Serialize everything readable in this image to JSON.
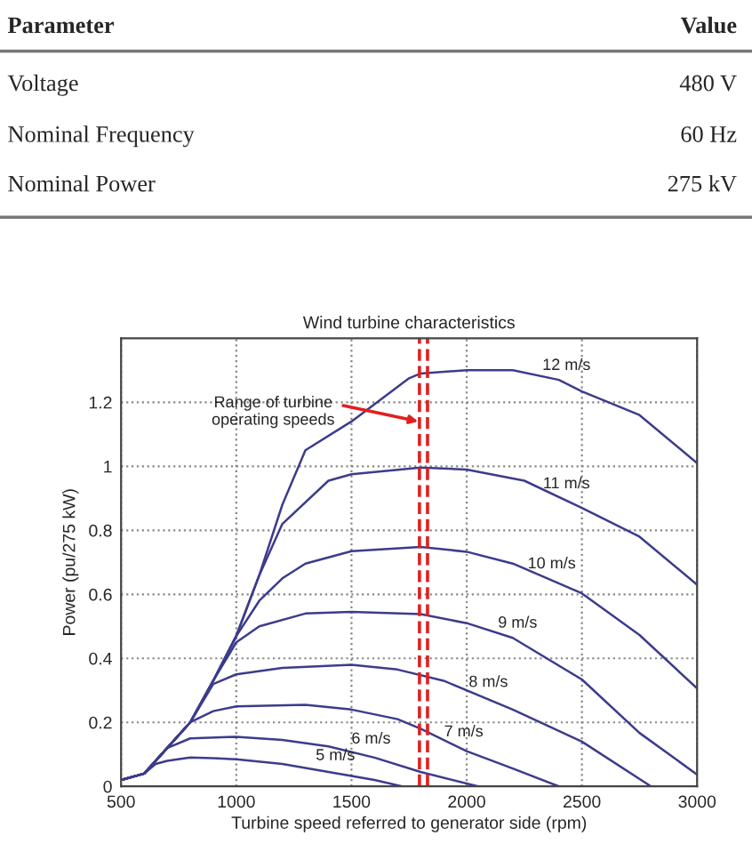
{
  "chart_data": {
    "type": "line",
    "title": "Wind turbine characteristics",
    "xlabel": "Turbine speed referred to generator side (rpm)",
    "ylabel": "Power (pu/275 kW)",
    "xlim": [
      500,
      3000
    ],
    "xticks": [
      500,
      1000,
      1500,
      2000,
      2500,
      3000
    ],
    "ylim": [
      0,
      1.4
    ],
    "yticks": [
      0,
      0.2,
      0.4,
      0.6,
      0.8,
      1,
      1.2
    ],
    "grid": true,
    "line_style": "solid",
    "marker": "none",
    "series": [
      {
        "color": "#3c3c8c",
        "x": [
          500,
          600,
          650,
          700,
          800,
          900,
          1000,
          1200,
          1400,
          1600,
          1720
        ],
        "values": [
          0.02,
          0.04,
          0.07,
          0.08,
          0.09,
          0.088,
          0.085,
          0.07,
          0.045,
          0.02,
          0
        ]
      },
      {
        "color": "#3c3c8c",
        "x": [
          500,
          600,
          700,
          800,
          1000,
          1200,
          1400,
          1600,
          1800,
          2050
        ],
        "values": [
          0.02,
          0.04,
          0.12,
          0.15,
          0.155,
          0.145,
          0.125,
          0.09,
          0.045,
          0
        ]
      },
      {
        "color": "#3c3c8c",
        "x": [
          500,
          600,
          700,
          800,
          900,
          1000,
          1300,
          1500,
          1700,
          1800,
          2000,
          2200,
          2400
        ],
        "values": [
          0.02,
          0.04,
          0.12,
          0.2,
          0.235,
          0.25,
          0.255,
          0.24,
          0.21,
          0.18,
          0.11,
          0.056,
          0
        ]
      },
      {
        "color": "#3c3c8c",
        "x": [
          500,
          600,
          700,
          800,
          900,
          1000,
          1200,
          1500,
          1700,
          1900,
          2200,
          2500,
          2800
        ],
        "values": [
          0.02,
          0.04,
          0.12,
          0.2,
          0.32,
          0.35,
          0.37,
          0.38,
          0.365,
          0.33,
          0.24,
          0.14,
          0
        ]
      },
      {
        "color": "#3c3c8c",
        "x": [
          500,
          600,
          700,
          800,
          900,
          1000,
          1100,
          1300,
          1500,
          1800,
          2000,
          2200,
          2500,
          2750,
          3000
        ],
        "values": [
          0.02,
          0.04,
          0.12,
          0.2,
          0.33,
          0.45,
          0.5,
          0.54,
          0.545,
          0.538,
          0.51,
          0.464,
          0.334,
          0.167,
          0.037
        ]
      },
      {
        "color": "#3c3c8c",
        "x": [
          500,
          600,
          700,
          800,
          900,
          1000,
          1100,
          1200,
          1300,
          1500,
          1800,
          2000,
          2200,
          2500,
          2750,
          3000
        ],
        "values": [
          0.02,
          0.04,
          0.12,
          0.2,
          0.33,
          0.47,
          0.58,
          0.65,
          0.696,
          0.735,
          0.748,
          0.733,
          0.696,
          0.603,
          0.473,
          0.306
        ]
      },
      {
        "color": "#3c3c8c",
        "x": [
          500,
          600,
          700,
          800,
          900,
          1000,
          1100,
          1200,
          1400,
          1500,
          1800,
          2000,
          2250,
          2500,
          2750,
          3000
        ],
        "values": [
          0.02,
          0.04,
          0.12,
          0.2,
          0.33,
          0.47,
          0.66,
          0.82,
          0.955,
          0.975,
          0.996,
          0.99,
          0.955,
          0.87,
          0.78,
          0.63
        ]
      },
      {
        "color": "#3c3c8c",
        "x": [
          500,
          600,
          700,
          800,
          900,
          1000,
          1100,
          1200,
          1300,
          1500,
          1750,
          1800,
          2000,
          2200,
          2400,
          2500,
          2750,
          3000
        ],
        "values": [
          0.02,
          0.04,
          0.12,
          0.2,
          0.33,
          0.47,
          0.66,
          0.88,
          1.05,
          1.14,
          1.275,
          1.29,
          1.3,
          1.3,
          1.27,
          1.234,
          1.16,
          1.01
        ]
      }
    ],
    "ref_lines": [
      {
        "axis": "x",
        "value": 1795,
        "color": "#e02020",
        "line_style": "dashed"
      },
      {
        "axis": "x",
        "value": 1830,
        "color": "#e02020",
        "line_style": "dashed"
      }
    ],
    "annotations": [
      "Parameter",
      "Value",
      "Voltage",
      "480 V",
      "Nominal Frequency",
      "60 Hz",
      "Nominal Power",
      "275 kV",
      {
        "text": "Range of turbine\noperating speeds",
        "x": 1790,
        "y": 1.14
      },
      {
        "text": "12 m/s",
        "x": 2433,
        "y": 1.26
      },
      {
        "text": "11 m/s",
        "x": 2433,
        "y": 0.89
      },
      {
        "text": "10 m/s",
        "x": 2369,
        "y": 0.64
      },
      {
        "text": "9 m/s",
        "x": 2221,
        "y": 0.455
      },
      {
        "text": "8 m/s",
        "x": 2094,
        "y": 0.27
      },
      {
        "text": "7 m/s",
        "x": 1987,
        "y": 0.115
      },
      {
        "text": "6 m/s",
        "x": 1585,
        "y": 0.093
      },
      {
        "text": "5 m/s",
        "x": 1430,
        "y": 0.041
      }
    ]
  }
}
